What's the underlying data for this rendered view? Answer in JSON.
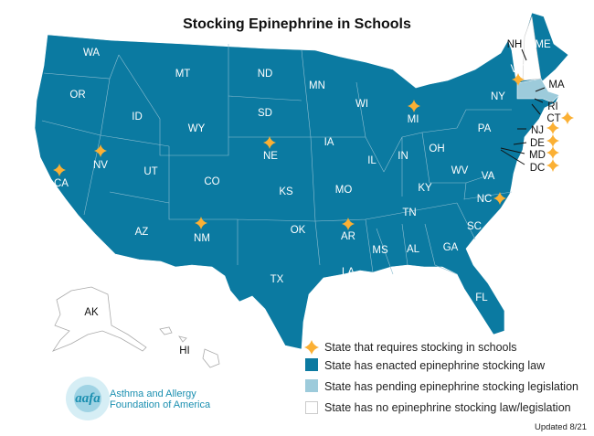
{
  "title": "Stocking Epinephrine in Schools",
  "colors": {
    "enacted": "#0b7aa1",
    "pending": "#9dcbdb",
    "none": "#ffffff",
    "star": "#fbb034"
  },
  "states": {
    "WA": "WA",
    "OR": "OR",
    "ID": "ID",
    "MT": "MT",
    "WY": "WY",
    "ND": "ND",
    "SD": "SD",
    "NE": "NE",
    "CA": "CA",
    "NV": "NV",
    "UT": "UT",
    "CO": "CO",
    "KS": "KS",
    "OK": "OK",
    "TX": "TX",
    "NM": "NM",
    "AZ": "AZ",
    "MN": "MN",
    "WI": "WI",
    "MI": "MI",
    "IA": "IA",
    "IL": "IL",
    "MO": "MO",
    "AR": "AR",
    "LA": "LA",
    "MS": "MS",
    "AL": "AL",
    "GA": "GA",
    "FL": "FL",
    "TN": "TN",
    "KY": "KY",
    "IN": "IN",
    "OH": "OH",
    "WV": "WV",
    "VA": "VA",
    "NC": "NC",
    "SC": "SC",
    "PA": "PA",
    "NY": "NY",
    "VT": "VT",
    "NH": "NH",
    "ME": "ME",
    "MA": "MA",
    "RI": "RI",
    "CT": "CT",
    "NJ": "NJ",
    "DE": "DE",
    "MD": "MD",
    "DC": "DC",
    "AK": "AK",
    "HI": "HI"
  },
  "requires_stocking": [
    "VT",
    "MI",
    "NV",
    "CA",
    "NE",
    "NM",
    "AR",
    "NC",
    "CT",
    "NJ",
    "DE",
    "MD",
    "DC"
  ],
  "pending": [
    "MA"
  ],
  "no_law": [
    "AK",
    "HI",
    "NH"
  ],
  "legend": {
    "requires": "State that requires stocking in schools",
    "enacted": "State has enacted epinephrine stocking law",
    "pending": "State has pending epinephrine stocking legislation",
    "none": "State has no epinephrine stocking law/legislation"
  },
  "logo": {
    "mark": "aafa",
    "line1": "Asthma and Allergy",
    "line2": "Foundation of America"
  },
  "updated": "Updated 8/21"
}
